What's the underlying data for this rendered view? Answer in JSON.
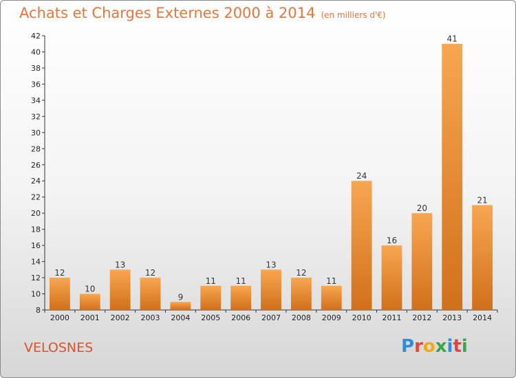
{
  "header": {
    "title": "Achats et Charges Externes 2000 à 2014",
    "subtitle": "(en milliers d'€)"
  },
  "footer": {
    "town": "VELOSNES",
    "logo": "Proxiti"
  },
  "colors": {
    "bar_top": "#f8a650",
    "bar_bottom": "#d1701a",
    "title": "#e8743a",
    "town": "#d9532b"
  },
  "chart_data": {
    "type": "bar",
    "title": "Achats et Charges Externes 2000 à 2014",
    "subtitle": "(en milliers d'€)",
    "categories": [
      "2000",
      "2001",
      "2002",
      "2003",
      "2004",
      "2005",
      "2006",
      "2007",
      "2008",
      "2009",
      "2010",
      "2011",
      "2012",
      "2013",
      "2014"
    ],
    "values": [
      12,
      10,
      13,
      12,
      9,
      11,
      11,
      13,
      12,
      11,
      24,
      16,
      20,
      41,
      21
    ],
    "ylim": [
      8,
      42
    ],
    "yticks": [
      8,
      10,
      12,
      14,
      16,
      18,
      20,
      22,
      24,
      26,
      28,
      30,
      32,
      34,
      36,
      38,
      40,
      42
    ],
    "xlabel": "",
    "ylabel": "",
    "grid": false,
    "data_labels": true
  }
}
